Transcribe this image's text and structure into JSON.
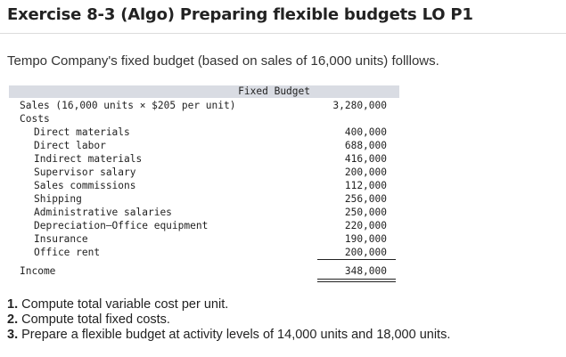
{
  "title": "Exercise 8-3 (Algo) Preparing flexible budgets LO P1",
  "intro": "Tempo Company's fixed budget (based on sales of 16,000 units) folllows.",
  "budget": {
    "header": "Fixed Budget",
    "sales_label": "Sales (16,000 units × $205 per unit)",
    "sales_value": "3,280,000",
    "costs_label": "Costs",
    "costs": [
      {
        "label": "Direct materials",
        "value": "400,000"
      },
      {
        "label": "Direct labor",
        "value": "688,000"
      },
      {
        "label": "Indirect materials",
        "value": "416,000"
      },
      {
        "label": "Supervisor salary",
        "value": "200,000"
      },
      {
        "label": "Sales commissions",
        "value": "112,000"
      },
      {
        "label": "Shipping",
        "value": "256,000"
      },
      {
        "label": "Administrative salaries",
        "value": "250,000"
      },
      {
        "label": "Depreciation—Office equipment",
        "value": "220,000"
      },
      {
        "label": "Insurance",
        "value": "190,000"
      },
      {
        "label": "Office rent",
        "value": "200,000"
      }
    ],
    "income_label": "Income",
    "income_value": "348,000"
  },
  "questions": [
    {
      "num": "1.",
      "text": "Compute total variable cost per unit."
    },
    {
      "num": "2.",
      "text": "Compute total fixed costs."
    },
    {
      "num": "3.",
      "text": "Prepare a flexible budget at activity levels of 14,000 units and 18,000 units."
    }
  ]
}
